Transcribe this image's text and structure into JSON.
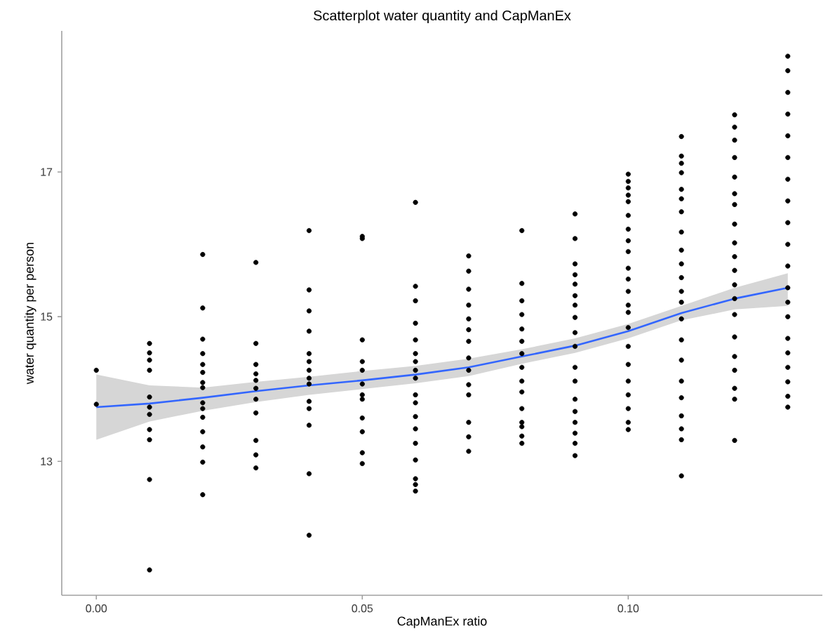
{
  "chart_data": {
    "type": "scatter",
    "title": "Scatterplot water quantity and CapManEx",
    "xlabel": "CapManEx ratio",
    "ylabel": "water quantity per person",
    "xlim": [
      -0.0065,
      0.1365
    ],
    "ylim": [
      11.15,
      18.95
    ],
    "xticks": [
      {
        "value": 0,
        "label": "0.00"
      },
      {
        "value": 0.05,
        "label": "0.05"
      },
      {
        "value": 0.1,
        "label": "0.10"
      }
    ],
    "yticks": [
      13,
      15,
      17
    ],
    "series": [
      {
        "color": "#000000",
        "marker": "circle",
        "x": [
          0,
          0,
          0.01,
          0.01,
          0.01,
          0.01,
          0.01,
          0.01,
          0.01,
          0.01,
          0.01,
          0.01,
          0.01,
          0.02,
          0.02,
          0.02,
          0.02,
          0.02,
          0.02,
          0.02,
          0.02,
          0.02,
          0.02,
          0.02,
          0.02,
          0.02,
          0.02,
          0.02,
          0.03,
          0.03,
          0.03,
          0.03,
          0.03,
          0.03,
          0.03,
          0.03,
          0.03,
          0.03,
          0.03,
          0.04,
          0.04,
          0.04,
          0.04,
          0.04,
          0.04,
          0.04,
          0.04,
          0.04,
          0.04,
          0.04,
          0.04,
          0.04,
          0.04,
          0.05,
          0.05,
          0.05,
          0.05,
          0.05,
          0.05,
          0.05,
          0.05,
          0.05,
          0.05,
          0.05,
          0.05,
          0.06,
          0.06,
          0.06,
          0.06,
          0.06,
          0.06,
          0.06,
          0.06,
          0.06,
          0.06,
          0.06,
          0.06,
          0.06,
          0.06,
          0.06,
          0.06,
          0.06,
          0.06,
          0.07,
          0.07,
          0.07,
          0.07,
          0.07,
          0.07,
          0.07,
          0.07,
          0.07,
          0.07,
          0.07,
          0.07,
          0.07,
          0.07,
          0.08,
          0.08,
          0.08,
          0.08,
          0.08,
          0.08,
          0.08,
          0.08,
          0.08,
          0.08,
          0.08,
          0.08,
          0.08,
          0.08,
          0.08,
          0.09,
          0.09,
          0.09,
          0.09,
          0.09,
          0.09,
          0.09,
          0.09,
          0.09,
          0.09,
          0.09,
          0.09,
          0.09,
          0.09,
          0.09,
          0.09,
          0.09,
          0.09,
          0.1,
          0.1,
          0.1,
          0.1,
          0.1,
          0.1,
          0.1,
          0.1,
          0.1,
          0.1,
          0.1,
          0.1,
          0.1,
          0.1,
          0.1,
          0.1,
          0.1,
          0.1,
          0.1,
          0.1,
          0.1,
          0.1,
          0.11,
          0.11,
          0.11,
          0.11,
          0.11,
          0.11,
          0.11,
          0.11,
          0.11,
          0.11,
          0.11,
          0.11,
          0.11,
          0.11,
          0.11,
          0.11,
          0.11,
          0.11,
          0.11,
          0.11,
          0.11,
          0.11,
          0.12,
          0.12,
          0.12,
          0.12,
          0.12,
          0.12,
          0.12,
          0.12,
          0.12,
          0.12,
          0.12,
          0.12,
          0.12,
          0.12,
          0.12,
          0.12,
          0.12,
          0.12,
          0.12,
          0.12,
          0.13,
          0.13,
          0.13,
          0.13,
          0.13,
          0.13,
          0.13,
          0.13,
          0.13,
          0.13,
          0.13,
          0.13,
          0.13,
          0.13,
          0.13,
          0.13,
          0.13,
          0.13,
          0.13,
          0.13
        ],
        "values": [
          14.26,
          13.79,
          14.63,
          14.5,
          14.4,
          14.26,
          13.89,
          13.75,
          13.65,
          13.44,
          13.3,
          12.75,
          11.5,
          15.86,
          15.12,
          14.69,
          14.49,
          14.34,
          14.23,
          14.09,
          14.02,
          13.81,
          13.73,
          13.61,
          13.41,
          13.2,
          12.99,
          12.54,
          15.75,
          14.63,
          14.34,
          14.21,
          14.12,
          14.01,
          13.86,
          13.67,
          13.29,
          13.09,
          12.91,
          16.19,
          15.37,
          15.08,
          14.8,
          14.49,
          14.38,
          14.26,
          14.15,
          14.07,
          13.83,
          13.73,
          13.5,
          12.83,
          11.98,
          16.11,
          16.08,
          14.68,
          14.38,
          14.26,
          14.07,
          13.92,
          13.86,
          13.6,
          13.41,
          13.12,
          12.97,
          16.58,
          15.42,
          15.22,
          14.91,
          14.68,
          14.49,
          14.38,
          14.26,
          14.15,
          13.92,
          13.81,
          13.62,
          13.45,
          13.25,
          13.02,
          12.76,
          12.68,
          12.59,
          15.84,
          15.63,
          15.38,
          15.16,
          14.97,
          14.82,
          14.66,
          14.43,
          14.26,
          14.06,
          13.92,
          13.54,
          13.34,
          13.14,
          16.19,
          15.46,
          15.22,
          15.03,
          14.83,
          14.66,
          14.49,
          14.3,
          14.11,
          13.96,
          13.73,
          13.54,
          13.48,
          13.35,
          13.25,
          16.42,
          16.08,
          15.73,
          15.58,
          15.45,
          15.29,
          15.16,
          14.99,
          14.78,
          14.59,
          14.3,
          14.11,
          13.86,
          13.69,
          13.54,
          13.39,
          13.25,
          13.08,
          16.97,
          16.87,
          16.78,
          16.68,
          16.59,
          16.4,
          16.21,
          16.05,
          15.9,
          15.67,
          15.52,
          15.35,
          15.16,
          15.06,
          14.85,
          14.59,
          14.34,
          14.11,
          13.92,
          13.73,
          13.54,
          13.44,
          17.49,
          17.22,
          17.12,
          16.99,
          16.76,
          16.63,
          16.45,
          16.17,
          15.92,
          15.73,
          15.54,
          15.35,
          15.2,
          14.97,
          14.68,
          14.4,
          14.11,
          13.88,
          13.63,
          13.45,
          13.3,
          12.8,
          17.79,
          17.62,
          17.44,
          17.2,
          16.93,
          16.7,
          16.55,
          16.28,
          16.02,
          15.83,
          15.64,
          15.44,
          15.25,
          15.03,
          14.72,
          14.45,
          14.26,
          14.01,
          13.86,
          13.29,
          18.6,
          18.4,
          18.1,
          17.8,
          17.5,
          17.2,
          16.9,
          16.6,
          16.3,
          16.0,
          15.7,
          15.4,
          15.2,
          15.0,
          14.7,
          14.5,
          14.3,
          14.1,
          13.9,
          13.75
        ]
      },
      {
        "type": "line",
        "color": "#3366ff",
        "marker": "none",
        "x": [
          0,
          0.01,
          0.02,
          0.03,
          0.04,
          0.05,
          0.06,
          0.07,
          0.08,
          0.09,
          0.1,
          0.11,
          0.12,
          0.13
        ],
        "values": [
          13.75,
          13.8,
          13.88,
          13.97,
          14.05,
          14.12,
          14.2,
          14.3,
          14.45,
          14.6,
          14.8,
          15.05,
          15.25,
          15.4
        ],
        "lower": [
          13.3,
          13.55,
          13.7,
          13.82,
          13.92,
          14.0,
          14.08,
          14.18,
          14.35,
          14.5,
          14.7,
          14.95,
          15.1,
          15.15
        ],
        "upper": [
          14.2,
          14.05,
          14.02,
          14.1,
          14.17,
          14.25,
          14.32,
          14.42,
          14.55,
          14.7,
          14.9,
          15.15,
          15.4,
          15.6
        ]
      }
    ]
  }
}
